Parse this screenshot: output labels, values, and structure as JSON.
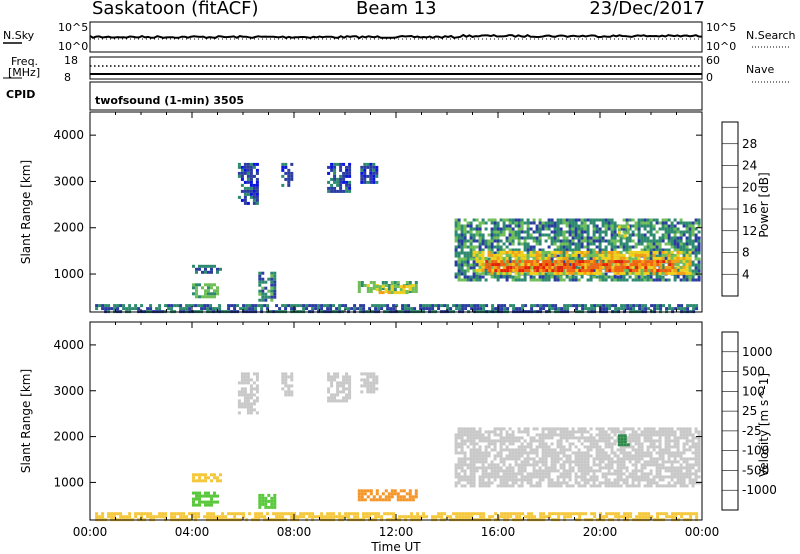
{
  "header": {
    "station": "Saskatoon (fitACF)",
    "beam": "Beam 13",
    "date": "23/Dec/2017"
  },
  "noise_panel": {
    "left_label": "N.Sky",
    "left_ticks": [
      "10^5",
      "10^0"
    ],
    "right_ticks": [
      "10^5",
      "10^0"
    ],
    "right_label": "N.Search"
  },
  "freq_panel": {
    "left_label_1": "Freq.",
    "left_label_2": "[MHz]",
    "left_ticks": [
      "18",
      "8"
    ],
    "right_ticks": [
      "60",
      "0"
    ],
    "right_label": "Nave"
  },
  "cpid": {
    "label": "CPID",
    "value": "twofsound (1-min) 3505"
  },
  "colors": {
    "power_scale": [
      "#0a14dc",
      "#2a3ca0",
      "#2e8a6e",
      "#6fbe58",
      "#f0d21e",
      "#f5a014",
      "#f06414",
      "#e61e0a"
    ],
    "velocity_scale": [
      "#e60a0a",
      "#f05a0a",
      "#f59628",
      "#f5c83c",
      "#c8c8c8",
      "#5ac83c",
      "#2e8a4a",
      "#2a50b4",
      "#0a14a0"
    ]
  },
  "chart_data": [
    {
      "type": "heatmap",
      "name": "Power",
      "ylabel": "Slant Range [km]",
      "yticks": [
        1000,
        2000,
        3000,
        4000
      ],
      "ylim": [
        180,
        4500
      ],
      "xlim": [
        0,
        24
      ],
      "colorbar": {
        "label": "Power [dB]",
        "ticks": [
          "4",
          "8",
          "12",
          "16",
          "20",
          "24",
          "28"
        ],
        "range": [
          0,
          32
        ]
      },
      "regions": [
        {
          "t0": 5.8,
          "t1": 6.6,
          "r0": 2500,
          "r1": 3400,
          "value": 6
        },
        {
          "t0": 7.5,
          "t1": 7.9,
          "r0": 2900,
          "r1": 3400,
          "value": 5
        },
        {
          "t0": 9.3,
          "t1": 10.2,
          "r0": 2800,
          "r1": 3400,
          "value": 6
        },
        {
          "t0": 10.6,
          "t1": 11.3,
          "r0": 3000,
          "r1": 3400,
          "value": 6
        },
        {
          "t0": 4.0,
          "t1": 5.1,
          "r0": 1050,
          "r1": 1200,
          "value": 8
        },
        {
          "t0": 4.0,
          "t1": 5.0,
          "r0": 500,
          "r1": 800,
          "value": 12
        },
        {
          "t0": 6.6,
          "t1": 7.2,
          "r0": 450,
          "r1": 1050,
          "value": 10
        },
        {
          "t0": 10.5,
          "t1": 12.8,
          "r0": 600,
          "r1": 850,
          "value": 13
        },
        {
          "t0": 11.2,
          "t1": 12.6,
          "r0": 580,
          "r1": 760,
          "value": 18
        },
        {
          "t0": 14.3,
          "t1": 23.9,
          "r0": 900,
          "r1": 2200,
          "value": 10
        },
        {
          "t0": 15.0,
          "t1": 23.5,
          "r0": 1000,
          "r1": 1500,
          "value": 18
        },
        {
          "t0": 15.5,
          "t1": 23.0,
          "r0": 1050,
          "r1": 1300,
          "value": 26
        },
        {
          "t0": 20.7,
          "t1": 21.1,
          "r0": 1850,
          "r1": 2050,
          "value": 16
        },
        {
          "t0": 0.2,
          "t1": 23.8,
          "r0": 180,
          "r1": 350,
          "value": 8
        }
      ]
    },
    {
      "type": "heatmap",
      "name": "Velocity",
      "ylabel": "Slant Range [km]",
      "xlabel": "Time UT",
      "xticks": [
        "00:00",
        "04:00",
        "08:00",
        "12:00",
        "16:00",
        "20:00",
        "00:00"
      ],
      "yticks": [
        1000,
        2000,
        3000,
        4000
      ],
      "ylim": [
        180,
        4500
      ],
      "xlim": [
        0,
        24
      ],
      "colorbar": {
        "label": "Velocity [m s^-1]",
        "ticks": [
          "-1000",
          "-500",
          "-100",
          "-25",
          "25",
          "100",
          "500",
          "1000"
        ]
      },
      "regions": [
        {
          "t0": 5.8,
          "t1": 6.6,
          "r0": 2500,
          "r1": 3400,
          "value": 0
        },
        {
          "t0": 7.5,
          "t1": 7.9,
          "r0": 2900,
          "r1": 3400,
          "value": 0
        },
        {
          "t0": 9.3,
          "t1": 10.2,
          "r0": 2800,
          "r1": 3400,
          "value": 0
        },
        {
          "t0": 10.6,
          "t1": 11.3,
          "r0": 3000,
          "r1": 3400,
          "value": 0
        },
        {
          "t0": 4.0,
          "t1": 5.1,
          "r0": 1050,
          "r1": 1200,
          "value": -80
        },
        {
          "t0": 4.0,
          "t1": 5.0,
          "r0": 500,
          "r1": 800,
          "value": 80
        },
        {
          "t0": 6.6,
          "t1": 7.2,
          "r0": 450,
          "r1": 750,
          "value": 60
        },
        {
          "t0": 10.5,
          "t1": 12.8,
          "r0": 600,
          "r1": 850,
          "value": -300
        },
        {
          "t0": 14.3,
          "t1": 23.9,
          "r0": 900,
          "r1": 2200,
          "value": 0
        },
        {
          "t0": 20.7,
          "t1": 21.1,
          "r0": 1850,
          "r1": 2050,
          "value": 200
        },
        {
          "t0": 0.2,
          "t1": 23.8,
          "r0": 180,
          "r1": 350,
          "value": -60
        }
      ]
    }
  ]
}
